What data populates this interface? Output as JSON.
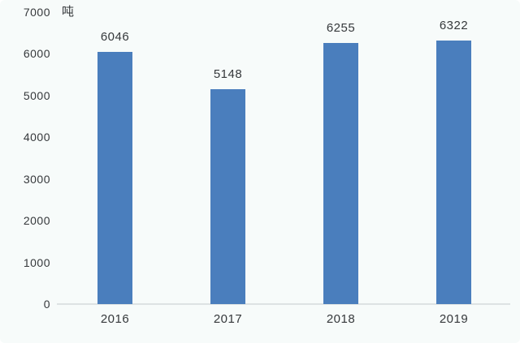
{
  "chart_data": {
    "type": "bar",
    "categories": [
      "2016",
      "2017",
      "2018",
      "2019"
    ],
    "values": [
      6046,
      5148,
      6255,
      6322
    ],
    "data_labels": [
      "6046",
      "5148",
      "6255",
      "6322"
    ],
    "title": "",
    "xlabel": "",
    "ylabel": "吨",
    "ylim": [
      0,
      7000
    ],
    "yticks": [
      0,
      1000,
      2000,
      3000,
      4000,
      5000,
      6000,
      7000
    ],
    "grid": false,
    "legend": "none",
    "colors": {
      "bar": "#4A7EBD",
      "axis_line": "#dde2e3",
      "text": "#35383b",
      "background": "#f7fbfa"
    }
  }
}
